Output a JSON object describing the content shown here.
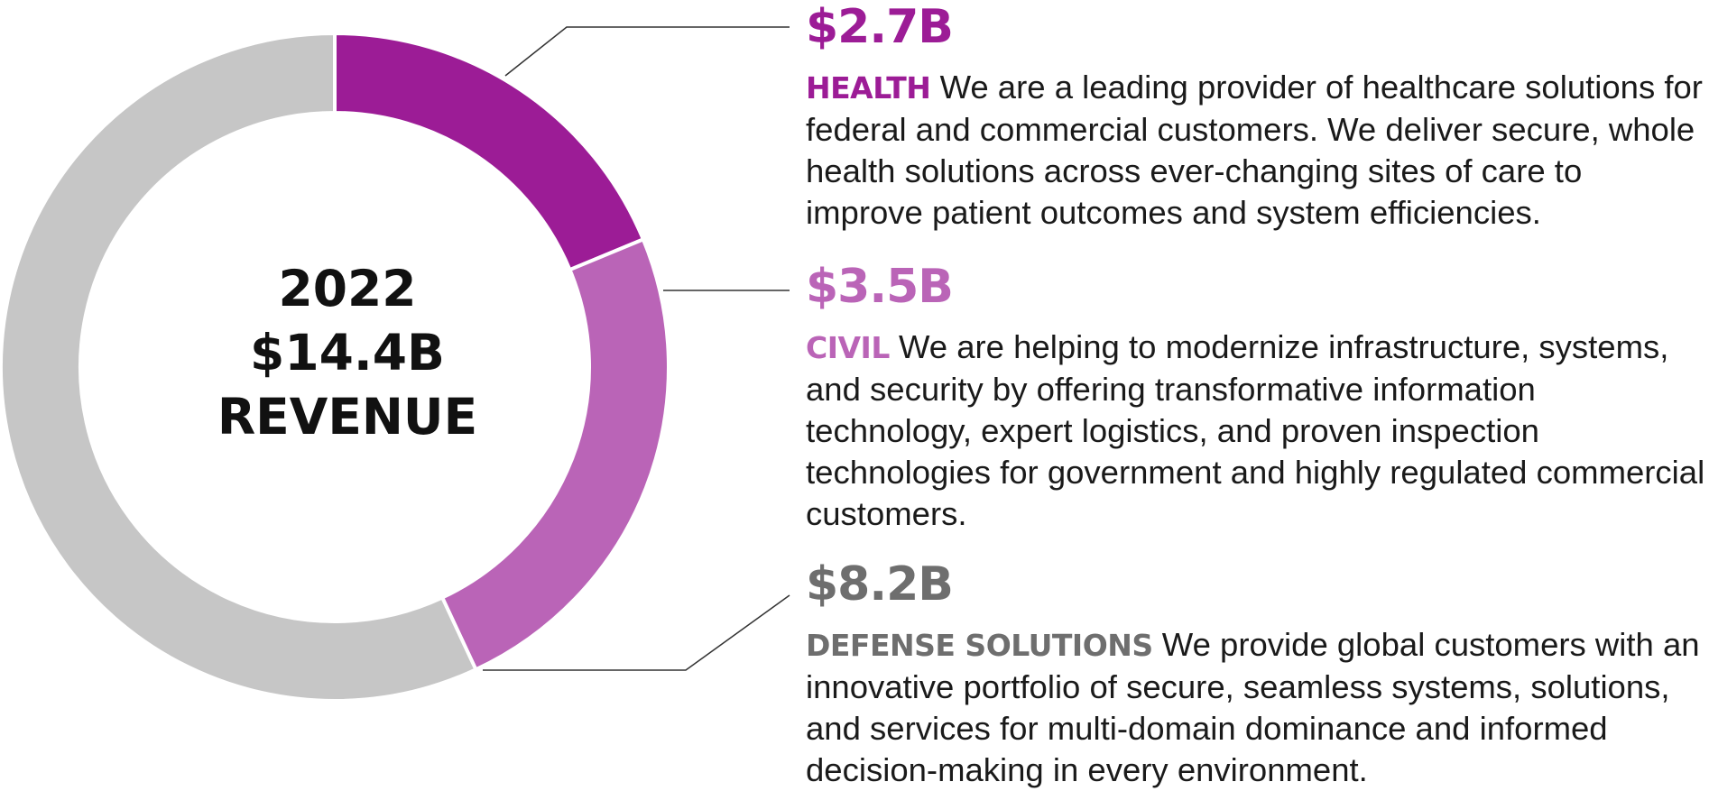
{
  "chart_data": {
    "type": "pie",
    "categories": [
      "Health",
      "Civil",
      "Defense Solutions"
    ],
    "values": [
      2.7,
      3.5,
      8.2
    ],
    "value_labels": [
      "$2.7B",
      "$3.5B",
      "$8.2B"
    ],
    "colors": [
      "#9c1c96",
      "#ba64b7",
      "#c6c6c6"
    ],
    "donut": true,
    "center_label": [
      "2022",
      "$14.4B",
      "REVENUE"
    ],
    "legend": "right"
  },
  "segments": [
    {
      "value": "$2.7B",
      "name": "HEALTH",
      "description": "We are a leading provider of healthcare solutions for federal and commercial customers. We deliver secure, whole health solutions across ever-changing sites of care to improve patient outcomes and system efficiencies.",
      "color": "#9c1c96"
    },
    {
      "value": "$3.5B",
      "name": "CIVIL",
      "description": "We are helping to modernize infrastructure, systems, and security by offering transformative information technology, expert logistics, and proven inspection technologies for government and highly regulated commercial customers.",
      "color": "#ba64b7"
    },
    {
      "value": "$8.2B",
      "name": "DEFENSE SOLUTIONS",
      "description": "We provide global customers with an innovative portfolio of secure, seamless systems, solutions, and services for multi-domain dominance and informed decision-making in every environment.",
      "color": "#6e6e6e"
    }
  ]
}
